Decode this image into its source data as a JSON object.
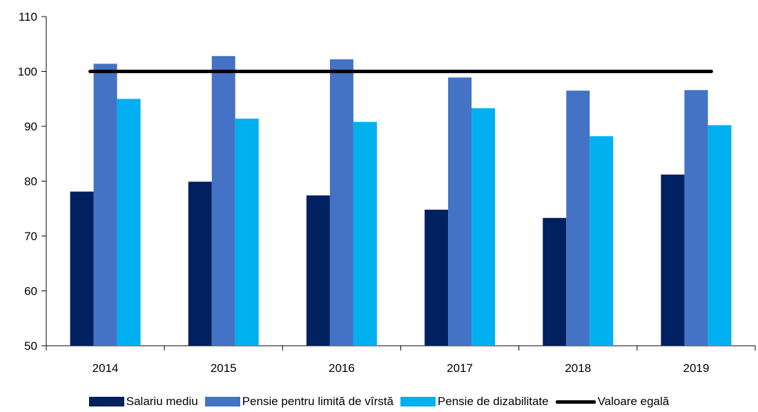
{
  "chart_data": {
    "type": "bar",
    "categories": [
      "2014",
      "2015",
      "2016",
      "2017",
      "2018",
      "2019"
    ],
    "series": [
      {
        "name": "Salariu mediu",
        "color": "#002060",
        "values": [
          78.1,
          79.9,
          77.4,
          74.8,
          73.3,
          81.2
        ]
      },
      {
        "name": "Pensie pentru limită de vîrstă",
        "color": "#4472C4",
        "values": [
          101.4,
          102.8,
          102.2,
          98.9,
          96.5,
          96.6
        ]
      },
      {
        "name": "Pensie de dizabilitate",
        "color": "#00B0F0",
        "values": [
          95.0,
          91.4,
          90.8,
          93.3,
          88.2,
          90.2
        ]
      }
    ],
    "reference_line": {
      "name": "Valoare egală",
      "value": 100,
      "color": "#000000"
    },
    "ylim": [
      50,
      110
    ],
    "yticks": [
      "50",
      "60",
      "70",
      "80",
      "90",
      "100",
      "110"
    ],
    "title": "",
    "xlabel": "",
    "ylabel": "",
    "grid": false,
    "legend_position": "bottom"
  }
}
